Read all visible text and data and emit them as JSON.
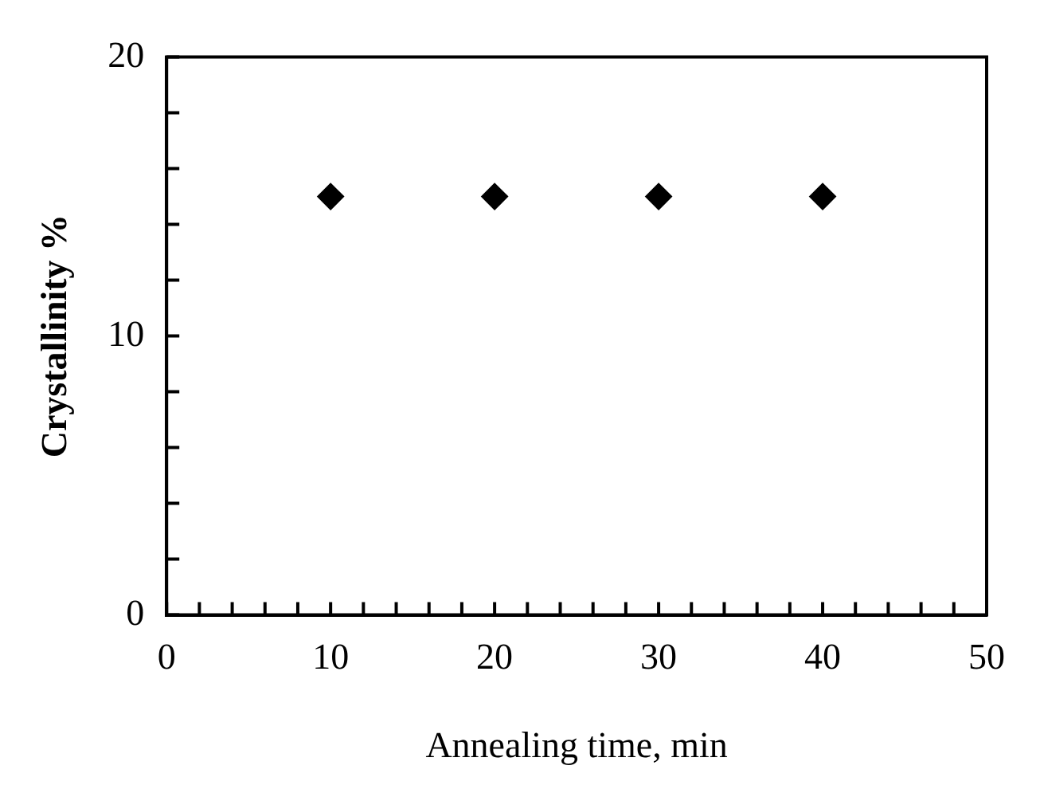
{
  "chart_data": {
    "type": "scatter",
    "xlabel": "Annealing time, min",
    "ylabel": "Crystallinity %",
    "x": [
      10,
      20,
      30,
      40
    ],
    "series": [
      {
        "color": "#000000",
        "values": [
          15,
          15,
          15,
          15
        ]
      }
    ],
    "xlim": [
      0,
      50
    ],
    "ylim": [
      0,
      20
    ],
    "xticks": [
      0,
      {
        "value": 2,
        "label": null
      },
      {
        "value": 4,
        "label": null
      },
      {
        "value": 6,
        "label": null
      },
      {
        "value": 8,
        "label": null
      },
      10,
      {
        "value": 12,
        "label": null
      },
      {
        "value": 14,
        "label": null
      },
      {
        "value": 16,
        "label": null
      },
      {
        "value": 18,
        "label": null
      },
      20,
      {
        "value": 22,
        "label": null
      },
      {
        "value": 24,
        "label": null
      },
      {
        "value": 26,
        "label": null
      },
      {
        "value": 28,
        "label": null
      },
      30,
      {
        "value": 32,
        "label": null
      },
      {
        "value": 34,
        "label": null
      },
      {
        "value": 36,
        "label": null
      },
      {
        "value": 38,
        "label": null
      },
      40,
      {
        "value": 42,
        "label": null
      },
      {
        "value": 44,
        "label": null
      },
      {
        "value": 46,
        "label": null
      },
      {
        "value": 48,
        "label": null
      },
      50
    ],
    "yticks": [
      0,
      {
        "value": 2,
        "label": null
      },
      {
        "value": 4,
        "label": null
      },
      {
        "value": 6,
        "label": null
      },
      {
        "value": 8,
        "label": null
      },
      10,
      {
        "value": 12,
        "label": null
      },
      {
        "value": 14,
        "label": null
      },
      {
        "value": 16,
        "label": null
      },
      {
        "value": 18,
        "label": null
      },
      20
    ],
    "marker": "diamond",
    "grid": false,
    "legend": false
  }
}
